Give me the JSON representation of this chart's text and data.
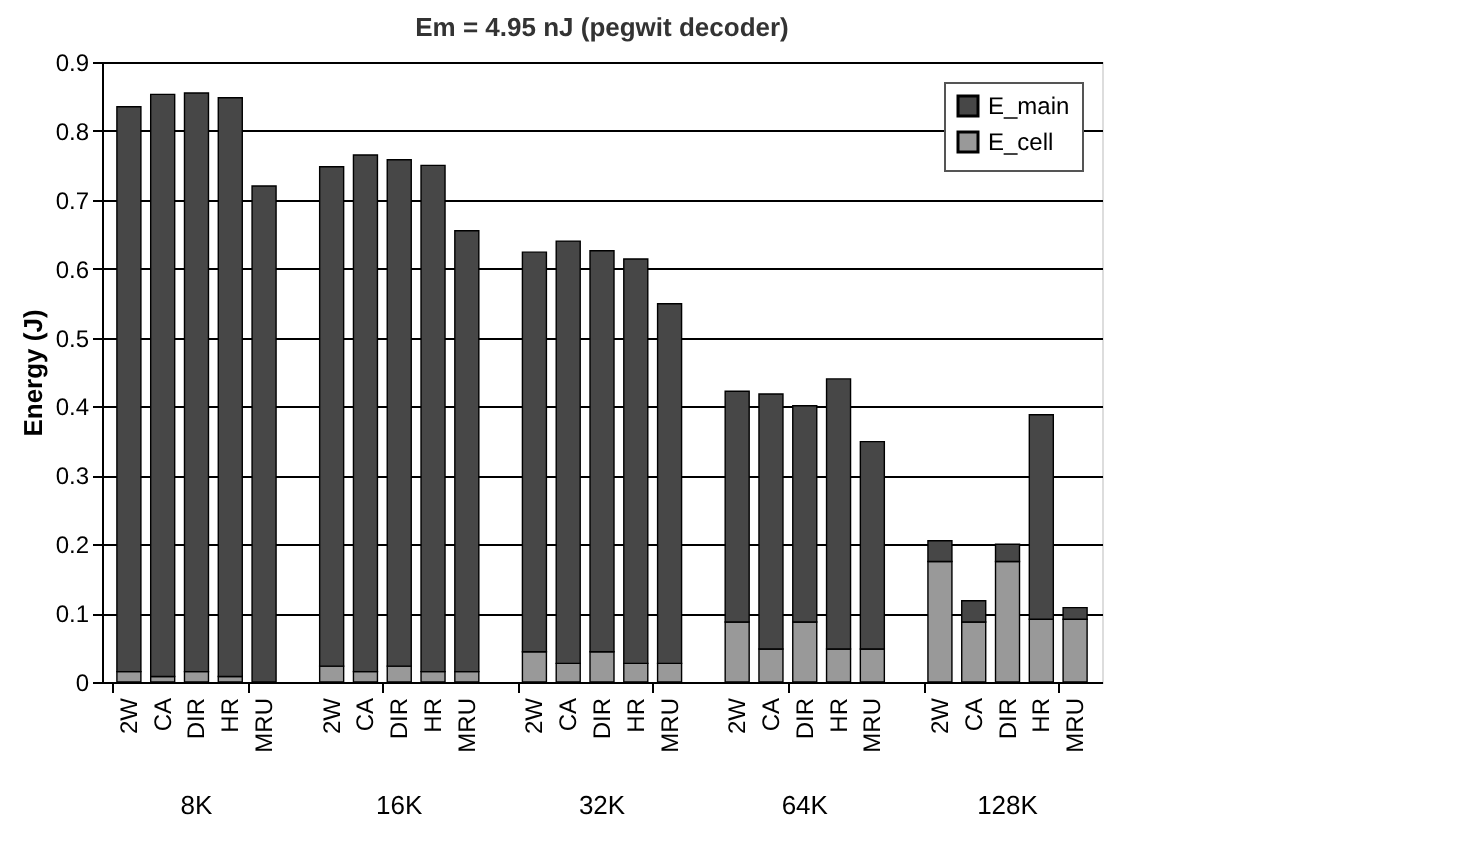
{
  "chart_data": {
    "type": "bar",
    "title": "Em = 4.95 nJ (pegwit decoder)",
    "ylabel": "Energy (J)",
    "categories": [
      "2W",
      "CA",
      "DIR",
      "HR",
      "MRU",
      "2W",
      "CA",
      "DIR",
      "HR",
      "MRU",
      "2W",
      "CA",
      "DIR",
      "HR",
      "MRU",
      "2W",
      "CA",
      "DIR",
      "HR",
      "MRU",
      "2W",
      "CA",
      "DIR",
      "HR",
      "MRU"
    ],
    "annotations": [
      "8K",
      "16K",
      "32K",
      "64K",
      "128K"
    ],
    "stacked": true,
    "series": [
      {
        "name": "E_cell",
        "color": "#999999",
        "values": [
          0.015,
          0.008,
          0.015,
          0.008,
          null,
          0.023,
          0.015,
          0.023,
          0.015,
          0.015,
          0.044,
          0.027,
          0.044,
          0.027,
          0.027,
          0.087,
          0.048,
          0.087,
          0.048,
          0.048,
          0.175,
          0.087,
          0.175,
          0.091,
          0.091
        ]
      },
      {
        "name": "E_main",
        "color": "#474747",
        "values": [
          0.82,
          0.845,
          0.84,
          0.84,
          0.72,
          0.725,
          0.75,
          0.735,
          0.735,
          0.64,
          0.58,
          0.613,
          0.582,
          0.587,
          0.522,
          0.335,
          0.37,
          0.314,
          0.392,
          0.301,
          0.03,
          0.031,
          0.025,
          0.297,
          0.017
        ]
      }
    ],
    "ylim": [
      0,
      0.9
    ],
    "yticks": [
      0,
      0.1,
      0.2,
      0.3,
      0.4,
      0.5,
      0.6,
      0.7,
      0.8,
      0.9
    ],
    "grid": "y",
    "legend": "top right"
  }
}
